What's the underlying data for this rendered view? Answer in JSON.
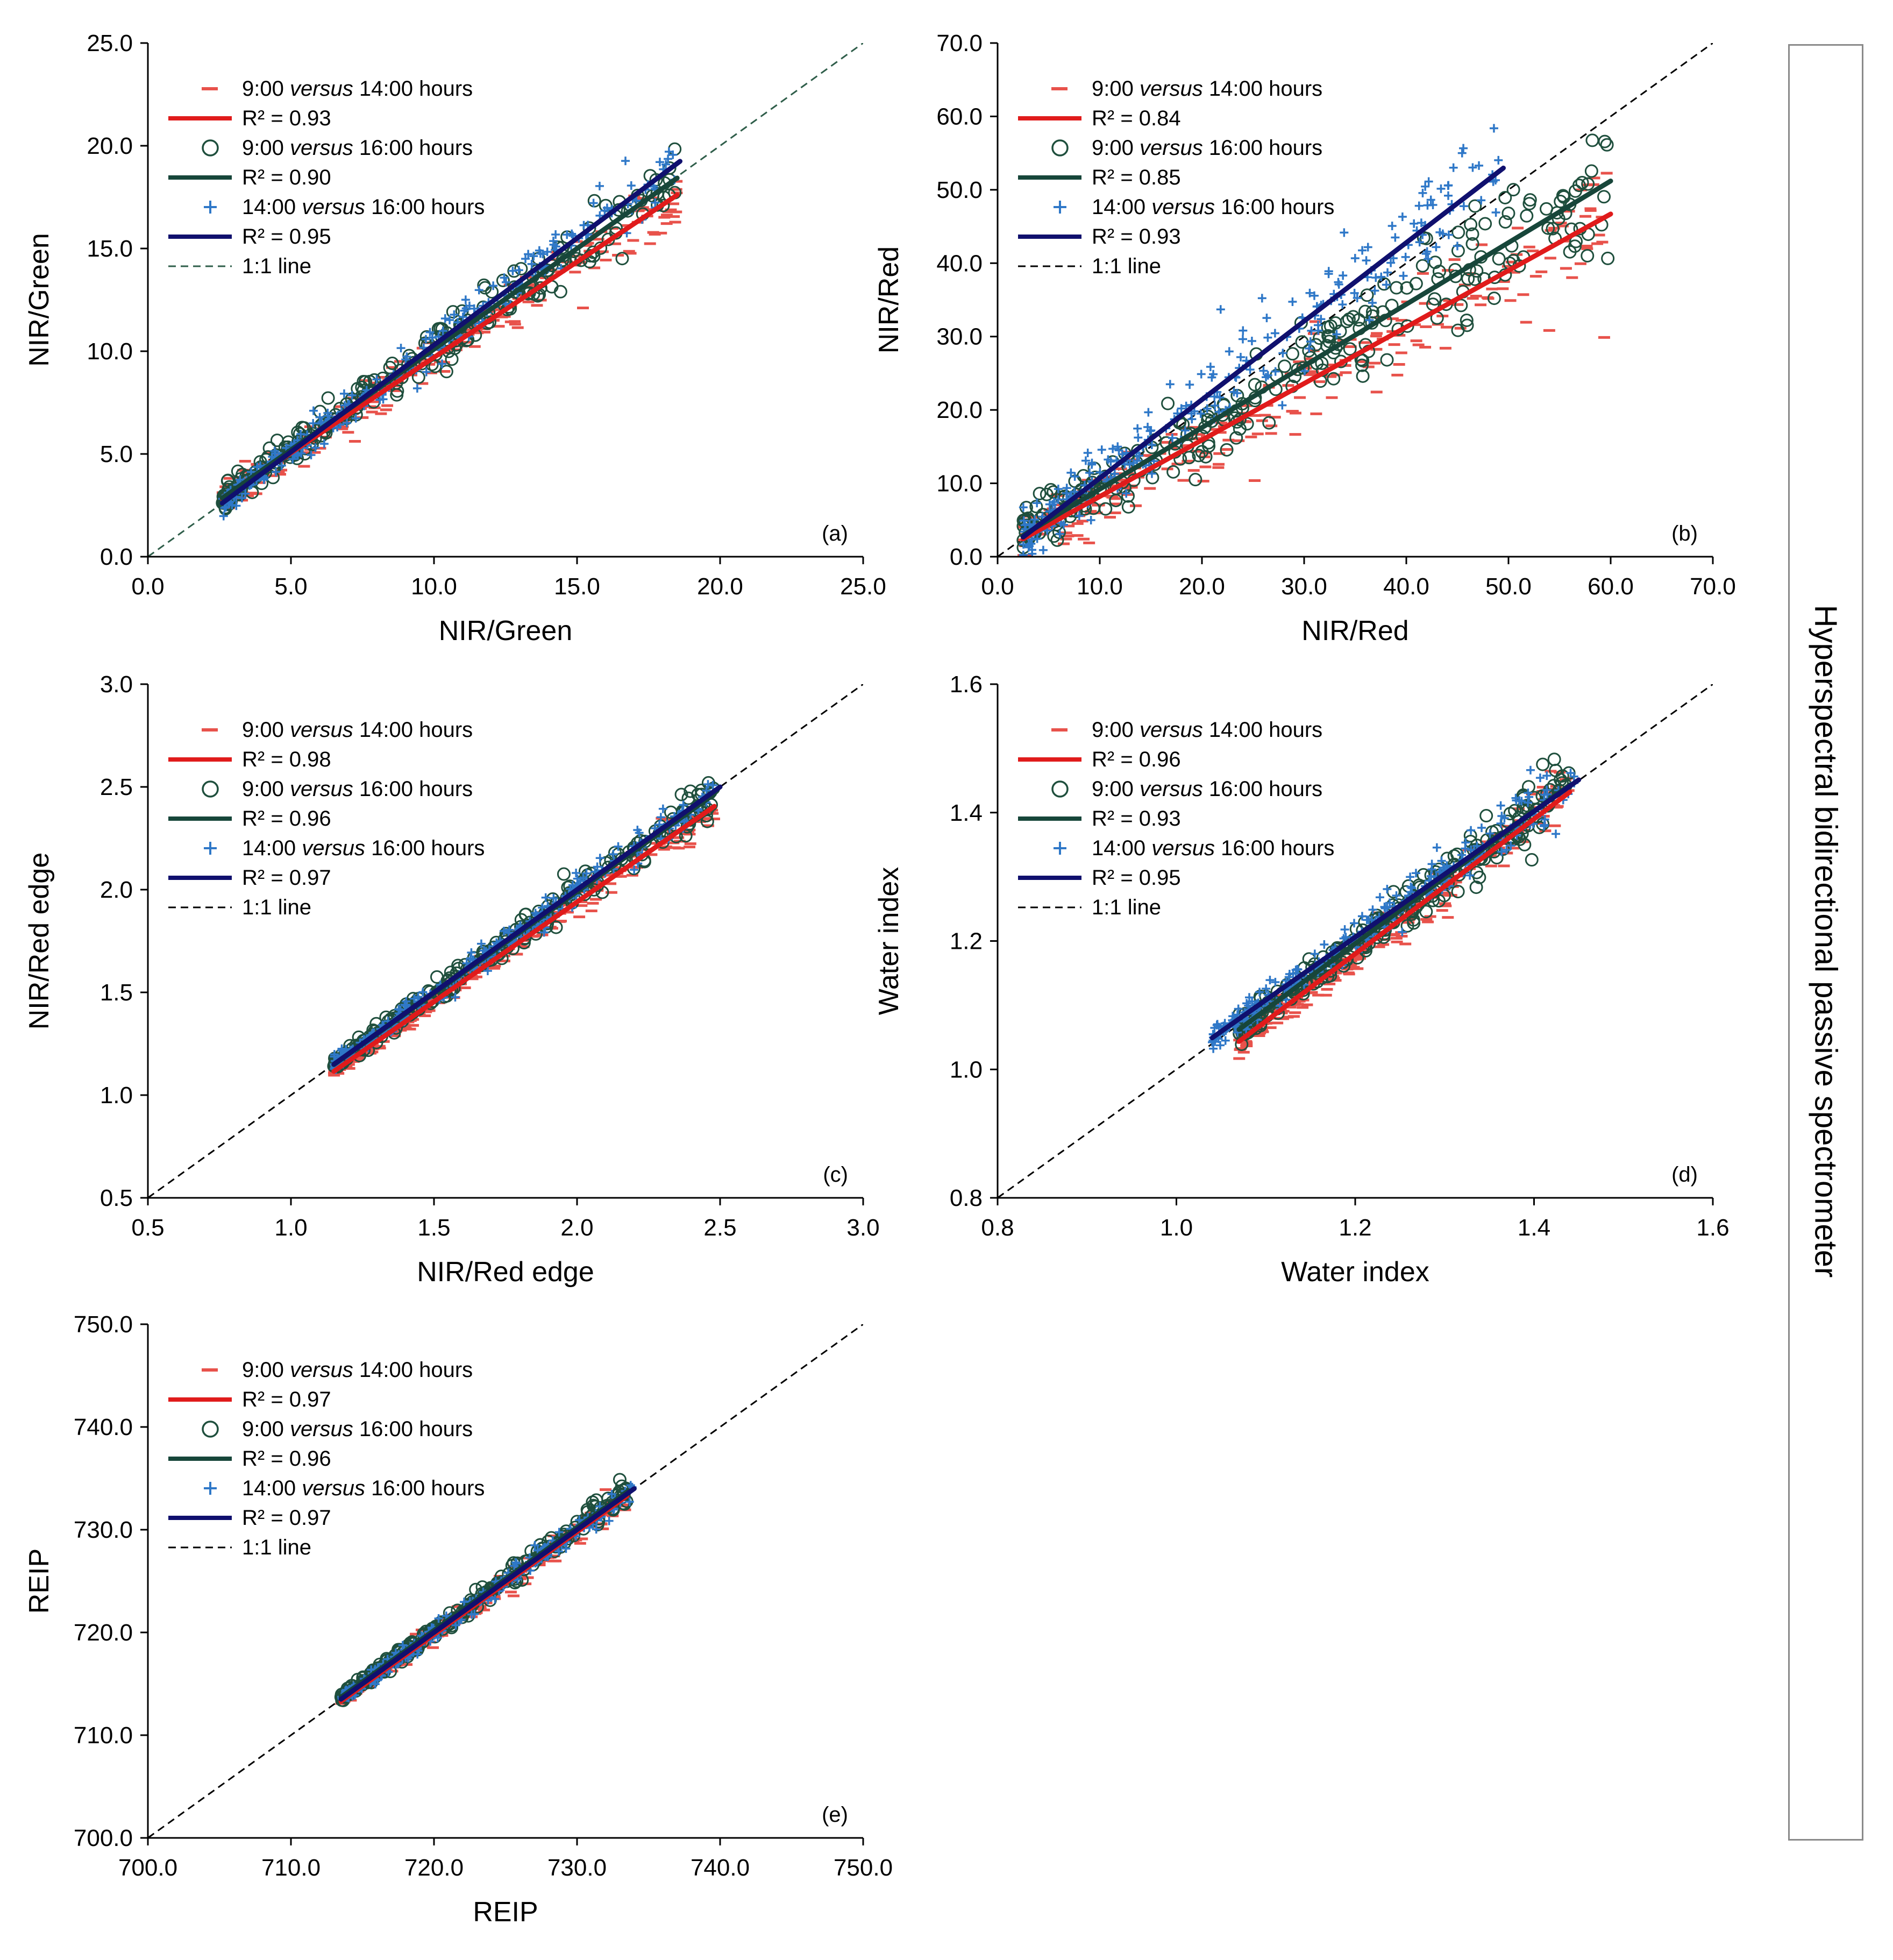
{
  "figure_label": "Hyperspectral bidirectional passive spectrometer",
  "colors": {
    "series1": "#e8524b",
    "series2": "#1f4f3d",
    "series3": "#2f78c8",
    "fit1": "#e01b1b",
    "fit2": "#17463a",
    "fit3": "#10106e",
    "oneToOne_a": "#2f5e4a",
    "oneToOne": "#000000"
  },
  "legend_labels": {
    "s1_pre": "9:00 ",
    "s1_em": "versus",
    "s1_post": " 14:00 hours",
    "s2_pre": "9:00 ",
    "s2_em": "versus",
    "s2_post": " 16:00 hours",
    "s3_pre": "14:00 ",
    "s3_em": "versus",
    "s3_post": " 16:00 hours",
    "one_to_one": "1:1 line"
  },
  "chart_data": [
    {
      "panel_label": "(a)",
      "type": "scatter",
      "xlabel": "NIR/Green",
      "ylabel": "NIR/Green",
      "xlim": [
        0,
        25
      ],
      "ylim": [
        0,
        25
      ],
      "xticks": [
        "0.0",
        "5.0",
        "10.0",
        "15.0",
        "20.0",
        "25.0"
      ],
      "yticks": [
        "0.0",
        "5.0",
        "10.0",
        "15.0",
        "20.0",
        "25.0"
      ],
      "tick_values": [
        0,
        5,
        10,
        15,
        20,
        25
      ],
      "legend_r2": [
        "R² = 0.93",
        "R² = 0.90",
        "R² = 0.95"
      ],
      "data_range": [
        2.5,
        18.5
      ],
      "fits": [
        {
          "series": "9:00 versus 14:00 hours",
          "slope": 0.93,
          "intercept": 0.4,
          "x0": 2.6,
          "x1": 18.5
        },
        {
          "series": "9:00 versus 16:00 hours",
          "slope": 0.98,
          "intercept": 0.3,
          "x0": 2.6,
          "x1": 18.5
        },
        {
          "series": "14:00 versus 16:00 hours",
          "slope": 1.04,
          "intercept": -0.1,
          "x0": 2.6,
          "x1": 18.6
        }
      ],
      "spread": 0.55
    },
    {
      "panel_label": "(b)",
      "type": "scatter",
      "xlabel": "NIR/Red",
      "ylabel": "NIR/Red",
      "xlim": [
        0,
        70
      ],
      "ylim": [
        0,
        70
      ],
      "xticks": [
        "0.0",
        "10.0",
        "20.0",
        "30.0",
        "40.0",
        "50.0",
        "60.0",
        "70.0"
      ],
      "yticks": [
        "0.0",
        "10.0",
        "20.0",
        "30.0",
        "40.0",
        "50.0",
        "60.0",
        "70.0"
      ],
      "tick_values": [
        0,
        10,
        20,
        30,
        40,
        50,
        60,
        70
      ],
      "legend_r2": [
        "R² = 0.84",
        "R² = 0.85",
        "R² = 0.93"
      ],
      "data_range": [
        2.5,
        60
      ],
      "fits": [
        {
          "series": "9:00 versus 14:00 hours",
          "slope": 0.77,
          "intercept": 0.5,
          "x0": 2.5,
          "x1": 60
        },
        {
          "series": "9:00 versus 16:00 hours",
          "slope": 0.84,
          "intercept": 0.8,
          "x0": 2.5,
          "x1": 60
        },
        {
          "series": "14:00 versus 16:00 hours",
          "slope": 1.07,
          "intercept": 0.0,
          "x0": 2.5,
          "x1": 49.5
        }
      ],
      "spread": 3.2
    },
    {
      "panel_label": "(c)",
      "type": "scatter",
      "xlabel": "NIR/Red edge",
      "ylabel": "NIR/Red edge",
      "xlim": [
        0.5,
        3.0
      ],
      "ylim": [
        0.5,
        3.0
      ],
      "xticks": [
        "0.5",
        "1.0",
        "1.5",
        "2.0",
        "2.5",
        "3.0"
      ],
      "yticks": [
        "0.5",
        "1.0",
        "1.5",
        "2.0",
        "2.5",
        "3.0"
      ],
      "tick_values": [
        0.5,
        1.0,
        1.5,
        2.0,
        2.5,
        3.0
      ],
      "legend_r2": [
        "R² = 0.98",
        "R² = 0.96",
        "R² = 0.97"
      ],
      "data_range": [
        1.15,
        2.5
      ],
      "fits": [
        {
          "series": "9:00 versus 14:00 hours",
          "slope": 0.97,
          "intercept": 0.0,
          "x0": 1.15,
          "x1": 2.48
        },
        {
          "series": "9:00 versus 16:00 hours",
          "slope": 0.99,
          "intercept": 0.01,
          "x0": 1.15,
          "x1": 2.48
        },
        {
          "series": "14:00 versus 16:00 hours",
          "slope": 1.0,
          "intercept": 0.0,
          "x0": 1.15,
          "x1": 2.5
        }
      ],
      "spread": 0.035
    },
    {
      "panel_label": "(d)",
      "type": "scatter",
      "xlabel": "Water index",
      "ylabel": "Water index",
      "xlim": [
        0.8,
        1.6
      ],
      "ylim": [
        0.8,
        1.6
      ],
      "xticks": [
        "0.8",
        "1.0",
        "1.2",
        "1.4",
        "1.6"
      ],
      "yticks": [
        "0.8",
        "1.0",
        "1.2",
        "1.4",
        "1.6"
      ],
      "tick_values": [
        0.8,
        1.0,
        1.2,
        1.4,
        1.6
      ],
      "legend_r2": [
        "R² = 0.96",
        "R² = 0.93",
        "R² = 0.95"
      ],
      "data_range": [
        1.04,
        1.45
      ],
      "fits": [
        {
          "series": "9:00 versus 14:00 hours",
          "slope": 1.05,
          "intercept": -0.08,
          "x0": 1.07,
          "x1": 1.44
        },
        {
          "series": "9:00 versus 16:00 hours",
          "slope": 1.03,
          "intercept": -0.04,
          "x0": 1.07,
          "x1": 1.44
        },
        {
          "series": "14:00 versus 16:00 hours",
          "slope": 0.98,
          "intercept": 0.03,
          "x0": 1.04,
          "x1": 1.45
        }
      ],
      "spread": 0.018
    },
    {
      "panel_label": "(e)",
      "type": "scatter",
      "xlabel": "REIP",
      "ylabel": "REIP",
      "xlim": [
        700,
        750
      ],
      "ylim": [
        700,
        750
      ],
      "xticks": [
        "700.0",
        "710.0",
        "720.0",
        "730.0",
        "740.0",
        "750.0"
      ],
      "yticks": [
        "700.0",
        "710.0",
        "720.0",
        "730.0",
        "740.0",
        "750.0"
      ],
      "tick_values": [
        700,
        710,
        720,
        730,
        740,
        750
      ],
      "legend_r2": [
        "R² = 0.97",
        "R² = 0.96",
        "R² = 0.97"
      ],
      "data_range": [
        713.5,
        734
      ],
      "fits": [
        {
          "series": "9:00 versus 14:00 hours",
          "slope": 1.0,
          "intercept": -0.2,
          "x0": 713.5,
          "x1": 733.5
        },
        {
          "series": "9:00 versus 16:00 hours",
          "slope": 1.0,
          "intercept": 0.2,
          "x0": 713.5,
          "x1": 733.5
        },
        {
          "series": "14:00 versus 16:00 hours",
          "slope": 1.0,
          "intercept": 0.0,
          "x0": 713.5,
          "x1": 734
        }
      ],
      "spread": 0.5
    }
  ]
}
